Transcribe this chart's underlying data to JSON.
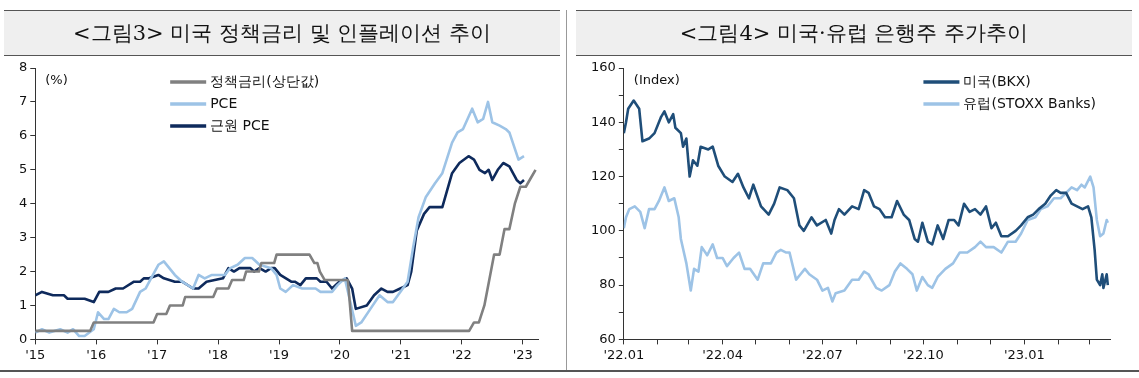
{
  "chart_data": [
    {
      "type": "line",
      "title": "<그림3> 미국 정책금리 및 인플레이션 추이",
      "ylabel": "(%)",
      "legend": "top",
      "grid": false,
      "marker": "none",
      "line_style": "solid",
      "xlim": [
        2015,
        2023.25
      ],
      "xticks": [
        {
          "value": 2015,
          "label": "'15"
        },
        {
          "value": 2016,
          "label": "'16"
        },
        {
          "value": 2017,
          "label": "'17"
        },
        {
          "value": 2018,
          "label": "'18"
        },
        {
          "value": 2019,
          "label": "'19"
        },
        {
          "value": 2020,
          "label": "'20"
        },
        {
          "value": 2021,
          "label": "'21"
        },
        {
          "value": 2022,
          "label": "'22"
        },
        {
          "value": 2023,
          "label": "'23"
        }
      ],
      "ylim": [
        0,
        8
      ],
      "yticks": [
        0,
        1,
        2,
        3,
        4,
        5,
        6,
        7,
        8
      ],
      "series": [
        {
          "name": "정책금리(상단값)",
          "color": "#808080",
          "x": [
            2015,
            2015.9,
            2015.96,
            2016.94,
            2017.0,
            2017.15,
            2017.21,
            2017.42,
            2017.46,
            2017.92,
            2017.98,
            2018.17,
            2018.23,
            2018.42,
            2018.46,
            2018.67,
            2018.71,
            2018.92,
            2018.96,
            2019.5,
            2019.58,
            2019.63,
            2019.67,
            2019.75,
            2020.13,
            2020.2,
            2022.12,
            2022.2,
            2022.28,
            2022.37,
            2022.45,
            2022.53,
            2022.62,
            2022.7,
            2022.78,
            2022.87,
            2022.96,
            2023.05,
            2023.13,
            2023.21
          ],
          "values": [
            0.25,
            0.25,
            0.5,
            0.5,
            0.75,
            0.75,
            1.0,
            1.0,
            1.25,
            1.25,
            1.5,
            1.5,
            1.75,
            1.75,
            2.0,
            2.0,
            2.25,
            2.25,
            2.5,
            2.5,
            2.25,
            2.25,
            2.0,
            1.75,
            1.75,
            0.25,
            0.25,
            0.5,
            0.5,
            1.0,
            1.75,
            2.5,
            2.5,
            3.25,
            3.25,
            4.0,
            4.5,
            4.5,
            4.75,
            5.0
          ]
        },
        {
          "name": "PCE",
          "color": "#9dc3e6",
          "x": [
            2015,
            2015.11,
            2015.23,
            2015.41,
            2015.53,
            2015.62,
            2015.72,
            2015.81,
            2015.96,
            2016.03,
            2016.13,
            2016.2,
            2016.29,
            2016.38,
            2016.5,
            2016.59,
            2016.72,
            2016.81,
            2016.9,
            2017.02,
            2017.11,
            2017.2,
            2017.29,
            2017.41,
            2017.59,
            2017.68,
            2017.78,
            2017.9,
            2018.11,
            2018.2,
            2018.32,
            2018.44,
            2018.56,
            2018.68,
            2018.87,
            2018.96,
            2019.02,
            2019.11,
            2019.23,
            2019.38,
            2019.6,
            2019.68,
            2019.87,
            2019.96,
            2020.08,
            2020.17,
            2020.26,
            2020.35,
            2020.5,
            2020.65,
            2020.78,
            2020.87,
            2020.99,
            2021.11,
            2021.2,
            2021.29,
            2021.41,
            2021.56,
            2021.68,
            2021.84,
            2021.93,
            2022.02,
            2022.17,
            2022.26,
            2022.35,
            2022.43,
            2022.5,
            2022.62,
            2022.72,
            2022.78,
            2022.93,
            2023.02
          ],
          "values": [
            0.2,
            0.3,
            0.2,
            0.3,
            0.2,
            0.3,
            0.1,
            0.1,
            0.3,
            0.8,
            0.6,
            0.6,
            0.9,
            0.8,
            0.8,
            0.9,
            1.4,
            1.5,
            1.8,
            2.2,
            2.3,
            2.1,
            1.9,
            1.7,
            1.5,
            1.9,
            1.8,
            1.9,
            1.9,
            2.1,
            2.2,
            2.4,
            2.4,
            2.2,
            2.1,
            1.9,
            1.5,
            1.4,
            1.6,
            1.5,
            1.5,
            1.4,
            1.4,
            1.6,
            1.8,
            1.1,
            0.4,
            0.5,
            0.9,
            1.3,
            1.1,
            1.1,
            1.4,
            1.7,
            2.7,
            3.6,
            4.2,
            4.6,
            4.9,
            5.8,
            6.1,
            6.2,
            6.8,
            6.4,
            6.5,
            7.0,
            6.4,
            6.3,
            6.2,
            6.1,
            5.3,
            5.4
          ]
        },
        {
          "name": "근원 PCE",
          "color": "#0e2a5c",
          "x": [
            2015,
            2015.11,
            2015.29,
            2015.38,
            2015.47,
            2015.53,
            2015.62,
            2015.72,
            2015.81,
            2015.96,
            2016.05,
            2016.2,
            2016.32,
            2016.44,
            2016.62,
            2016.72,
            2016.78,
            2016.87,
            2017.02,
            2017.11,
            2017.29,
            2017.41,
            2017.59,
            2017.68,
            2017.81,
            2018.08,
            2018.17,
            2018.26,
            2018.35,
            2018.44,
            2018.53,
            2018.59,
            2018.68,
            2018.78,
            2018.87,
            2018.93,
            2019.02,
            2019.2,
            2019.26,
            2019.35,
            2019.44,
            2019.56,
            2019.62,
            2019.68,
            2019.78,
            2019.87,
            2019.99,
            2020.11,
            2020.2,
            2020.26,
            2020.44,
            2020.56,
            2020.68,
            2020.78,
            2020.87,
            2020.99,
            2021.11,
            2021.17,
            2021.26,
            2021.38,
            2021.47,
            2021.59,
            2021.68,
            2021.84,
            2021.96,
            2022.11,
            2022.2,
            2022.29,
            2022.38,
            2022.44,
            2022.5,
            2022.59,
            2022.68,
            2022.78,
            2022.9,
            2022.96,
            2023.02
          ],
          "values": [
            1.3,
            1.4,
            1.3,
            1.3,
            1.3,
            1.2,
            1.2,
            1.2,
            1.2,
            1.1,
            1.4,
            1.4,
            1.5,
            1.5,
            1.7,
            1.7,
            1.8,
            1.8,
            1.9,
            1.8,
            1.7,
            1.7,
            1.5,
            1.5,
            1.7,
            1.8,
            2.1,
            2.0,
            2.1,
            2.1,
            2.1,
            2.0,
            2.1,
            2.0,
            2.1,
            2.1,
            1.9,
            1.7,
            1.7,
            1.6,
            1.8,
            1.8,
            1.8,
            1.7,
            1.7,
            1.5,
            1.7,
            1.8,
            1.5,
            0.9,
            1.0,
            1.3,
            1.5,
            1.4,
            1.4,
            1.5,
            1.6,
            2.0,
            3.2,
            3.7,
            3.9,
            3.9,
            3.9,
            4.9,
            5.2,
            5.4,
            5.3,
            5.0,
            4.9,
            5.0,
            4.7,
            5.0,
            5.2,
            5.1,
            4.7,
            4.6,
            4.7
          ]
        }
      ]
    },
    {
      "type": "line",
      "title": "<그림4> 미국·유럽 은행주 주가추이",
      "ylabel": "(Index)",
      "legend": "top right",
      "grid": false,
      "marker": "none",
      "line_style": "solid",
      "xlim": [
        "2022-01-01",
        "2023-03-20"
      ],
      "xticks": [
        {
          "value": "2022-01-01",
          "label": "'22.01"
        },
        {
          "value": "2022-02-01",
          "label": null
        },
        {
          "value": "2022-03-01",
          "label": null
        },
        {
          "value": "2022-04-01",
          "label": "'22.04"
        },
        {
          "value": "2022-05-01",
          "label": null
        },
        {
          "value": "2022-06-01",
          "label": null
        },
        {
          "value": "2022-07-01",
          "label": "'22.07"
        },
        {
          "value": "2022-08-01",
          "label": null
        },
        {
          "value": "2022-09-01",
          "label": null
        },
        {
          "value": "2022-10-01",
          "label": "'22.10"
        },
        {
          "value": "2022-11-01",
          "label": null
        },
        {
          "value": "2022-12-01",
          "label": null
        },
        {
          "value": "2023-01-01",
          "label": "'23.01"
        },
        {
          "value": "2023-02-01",
          "label": null
        },
        {
          "value": "2023-03-01",
          "label": null
        }
      ],
      "ylim": [
        60,
        160
      ],
      "yticks": [
        60,
        {
          "value": 70,
          "label": null
        },
        80,
        {
          "value": 90,
          "label": null
        },
        100,
        {
          "value": 110,
          "label": null
        },
        120,
        {
          "value": 130,
          "label": null
        },
        140,
        {
          "value": 150,
          "label": null
        },
        160
      ],
      "series": [
        {
          "name": "미국(BKX)",
          "color": "#1f4e79",
          "x": [
            "2022-01-01",
            "2022-01-03",
            "2022-01-05",
            "2022-01-10",
            "2022-01-15",
            "2022-01-18",
            "2022-01-24",
            "2022-01-29",
            "2022-02-04",
            "2022-02-07",
            "2022-02-11",
            "2022-02-15",
            "2022-02-17",
            "2022-02-22",
            "2022-02-24",
            "2022-02-27",
            "2022-03-02",
            "2022-03-05",
            "2022-03-09",
            "2022-03-12",
            "2022-03-19",
            "2022-03-23",
            "2022-03-28",
            "2022-04-03",
            "2022-04-10",
            "2022-04-15",
            "2022-04-20",
            "2022-04-25",
            "2022-04-29",
            "2022-05-06",
            "2022-05-13",
            "2022-05-18",
            "2022-05-23",
            "2022-05-30",
            "2022-06-05",
            "2022-06-10",
            "2022-06-14",
            "2022-06-21",
            "2022-06-26",
            "2022-07-04",
            "2022-07-09",
            "2022-07-12",
            "2022-07-16",
            "2022-07-21",
            "2022-07-28",
            "2022-08-03",
            "2022-08-08",
            "2022-08-12",
            "2022-08-17",
            "2022-08-22",
            "2022-08-27",
            "2022-09-02",
            "2022-09-07",
            "2022-09-13",
            "2022-09-18",
            "2022-09-23",
            "2022-09-26",
            "2022-09-30",
            "2022-10-05",
            "2022-10-09",
            "2022-10-14",
            "2022-10-19",
            "2022-10-24",
            "2022-10-29",
            "2022-11-02",
            "2022-11-07",
            "2022-11-12",
            "2022-11-17",
            "2022-11-22",
            "2022-11-27",
            "2022-12-02",
            "2022-12-06",
            "2022-12-11",
            "2022-12-17",
            "2022-12-24",
            "2022-12-29",
            "2023-01-04",
            "2023-01-09",
            "2023-01-14",
            "2023-01-20",
            "2023-01-25",
            "2023-01-30",
            "2023-02-03",
            "2023-02-08",
            "2023-02-13",
            "2023-02-18",
            "2023-02-23",
            "2023-02-28",
            "2023-03-03",
            "2023-03-06",
            "2023-03-08",
            "2023-03-11",
            "2023-03-13",
            "2023-03-14",
            "2023-03-17",
            "2023-03-18"
          ],
          "values": [
            136,
            140,
            145,
            148,
            145,
            133,
            134,
            136,
            142,
            144,
            140,
            143,
            138,
            136,
            131,
            134,
            120,
            126,
            124,
            131,
            130,
            131,
            124,
            120,
            118,
            121,
            116,
            112,
            117,
            109,
            106,
            110,
            116,
            115,
            112,
            102,
            100,
            105,
            102,
            104,
            99,
            104,
            108,
            106,
            109,
            108,
            115,
            114,
            109,
            108,
            105,
            105,
            111,
            106,
            104,
            97,
            96,
            103,
            96,
            95,
            102,
            97,
            104,
            104,
            102,
            110,
            107,
            108,
            106,
            109,
            101,
            103,
            98,
            98,
            100,
            102,
            105,
            106,
            108,
            110,
            113,
            115,
            114,
            114,
            110,
            109,
            108,
            109,
            105,
            93,
            82,
            80,
            84,
            79,
            84,
            80
          ]
        },
        {
          "name": "유럽(STOXX Banks)",
          "color": "#9dc3e6",
          "x": [
            "2022-01-01",
            "2022-01-03",
            "2022-01-06",
            "2022-01-11",
            "2022-01-16",
            "2022-01-20",
            "2022-01-24",
            "2022-01-29",
            "2022-02-02",
            "2022-02-07",
            "2022-02-11",
            "2022-02-16",
            "2022-02-20",
            "2022-02-22",
            "2022-02-27",
            "2022-03-03",
            "2022-03-06",
            "2022-03-10",
            "2022-03-13",
            "2022-03-18",
            "2022-03-23",
            "2022-03-27",
            "2022-04-01",
            "2022-04-05",
            "2022-04-11",
            "2022-04-16",
            "2022-04-21",
            "2022-04-26",
            "2022-05-03",
            "2022-05-08",
            "2022-05-15",
            "2022-05-20",
            "2022-05-24",
            "2022-05-29",
            "2022-06-01",
            "2022-06-07",
            "2022-06-11",
            "2022-06-15",
            "2022-06-19",
            "2022-06-26",
            "2022-07-01",
            "2022-07-06",
            "2022-07-10",
            "2022-07-13",
            "2022-07-21",
            "2022-07-28",
            "2022-08-03",
            "2022-08-08",
            "2022-08-12",
            "2022-08-19",
            "2022-08-24",
            "2022-08-31",
            "2022-09-05",
            "2022-09-10",
            "2022-09-16",
            "2022-09-21",
            "2022-09-25",
            "2022-09-30",
            "2022-10-05",
            "2022-10-09",
            "2022-10-14",
            "2022-10-21",
            "2022-10-28",
            "2022-11-03",
            "2022-11-10",
            "2022-11-17",
            "2022-11-22",
            "2022-11-27",
            "2022-12-04",
            "2022-12-11",
            "2022-12-17",
            "2022-12-24",
            "2022-12-29",
            "2023-01-04",
            "2023-01-11",
            "2023-01-16",
            "2023-01-22",
            "2023-01-28",
            "2023-02-03",
            "2023-02-08",
            "2023-02-13",
            "2023-02-18",
            "2023-02-22",
            "2023-02-25",
            "2023-03-02",
            "2023-03-05",
            "2023-03-08",
            "2023-03-11",
            "2023-03-14",
            "2023-03-17",
            "2023-03-18"
          ],
          "values": [
            101,
            105,
            108,
            109,
            107,
            101,
            108,
            108,
            111,
            116,
            111,
            112,
            105,
            97,
            88,
            78,
            86,
            85,
            94,
            91,
            95,
            90,
            90,
            87,
            90,
            92,
            86,
            86,
            82,
            88,
            88,
            92,
            93,
            92,
            92,
            82,
            84,
            86,
            84,
            82,
            78,
            79,
            74,
            77,
            78,
            82,
            82,
            85,
            84,
            79,
            78,
            80,
            85,
            88,
            86,
            84,
            78,
            83,
            80,
            79,
            83,
            86,
            88,
            92,
            92,
            94,
            96,
            94,
            94,
            92,
            96,
            96,
            99,
            104,
            105,
            108,
            109,
            112,
            112,
            114,
            116,
            115,
            117,
            116,
            120,
            116,
            104,
            98,
            99,
            104,
            103
          ]
        }
      ]
    }
  ]
}
